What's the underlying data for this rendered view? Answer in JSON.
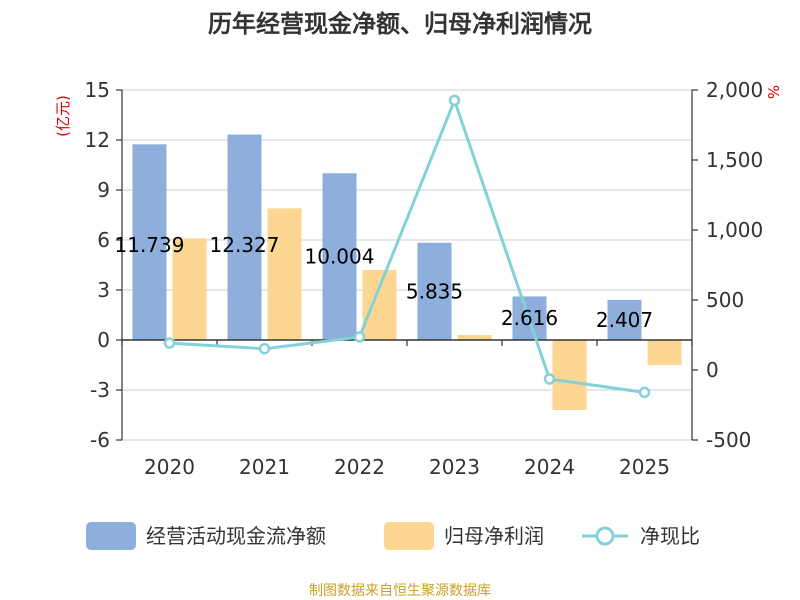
{
  "chart_data": {
    "type": "bar-line-combo",
    "title": "历年经营现金净额、归母净利润情况",
    "categories": [
      "2020",
      "2021",
      "2022",
      "2023",
      "2024",
      "2025"
    ],
    "left_axis": {
      "unit": "(亿元)",
      "min": -6,
      "max": 15,
      "ticks": [
        15,
        12,
        9,
        6,
        3,
        0,
        -3,
        -6
      ],
      "tick_labels": [
        "15",
        "12",
        "9",
        "6",
        "3",
        "0",
        "-3",
        "-6"
      ]
    },
    "right_axis": {
      "unit": "%",
      "min": -500,
      "max": 2000,
      "ticks": [
        2000,
        1500,
        1000,
        500,
        0,
        -500
      ],
      "tick_labels": [
        "2,000",
        "1,500",
        "1,000",
        "500",
        "0",
        "-500"
      ]
    },
    "series": [
      {
        "name": "经营活动现金流净额",
        "type": "bar",
        "axis": "left",
        "color": "#8eaedb",
        "values": [
          11.739,
          12.327,
          10.004,
          5.835,
          2.616,
          2.407
        ],
        "labels": [
          "11.739",
          "12.327",
          "10.004",
          "5.835",
          "2.616",
          "2.407"
        ]
      },
      {
        "name": "归母净利润",
        "type": "bar",
        "axis": "left",
        "color": "#fdd692",
        "values": [
          6.1,
          7.9,
          4.2,
          0.3,
          -4.2,
          -1.5
        ]
      },
      {
        "name": "净现比",
        "type": "line",
        "axis": "right",
        "color": "#85d1d8",
        "values": [
          192,
          152,
          236,
          1926,
          -64,
          -160
        ]
      }
    ],
    "grid": true,
    "legend_position": "bottom"
  },
  "footer": {
    "source": "制图数据来自恒生聚源数据库"
  }
}
